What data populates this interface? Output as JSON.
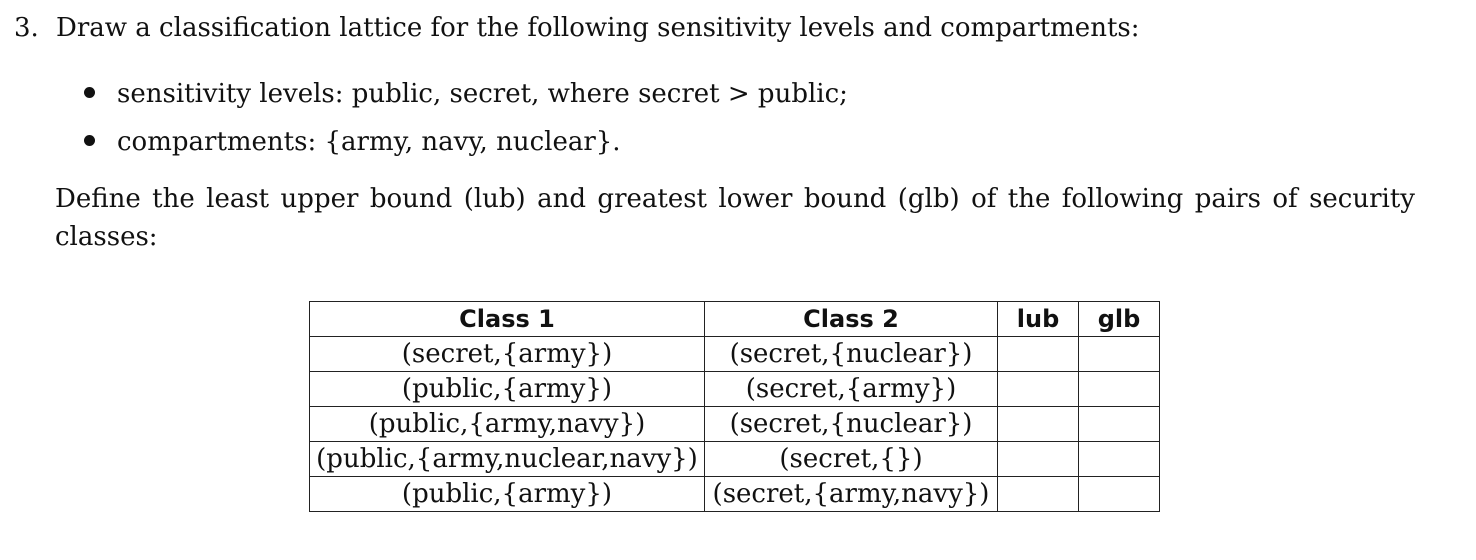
{
  "question": {
    "number": "3.",
    "prompt": "Draw a classification lattice for the following sensitivity levels and compartments:"
  },
  "bullets": [
    "sensitivity levels: public, secret, where secret > public;",
    "compartments: {army, navy, nuclear}."
  ],
  "define_text": "Define the least upper bound (lub) and greatest lower bound (glb) of the following pairs of security classes:",
  "table": {
    "headers": [
      "Class 1",
      "Class 2",
      "lub",
      "glb"
    ],
    "rows": [
      [
        "(secret,{army})",
        "(secret,{nuclear})",
        "",
        ""
      ],
      [
        "(public,{army})",
        "(secret,{army})",
        "",
        ""
      ],
      [
        "(public,{army,navy})",
        "(secret,{nuclear})",
        "",
        ""
      ],
      [
        "(public,{army,nuclear,navy})",
        "(secret,{})",
        "",
        ""
      ],
      [
        "(public,{army})",
        "(secret,{army,navy})",
        "",
        ""
      ]
    ]
  }
}
